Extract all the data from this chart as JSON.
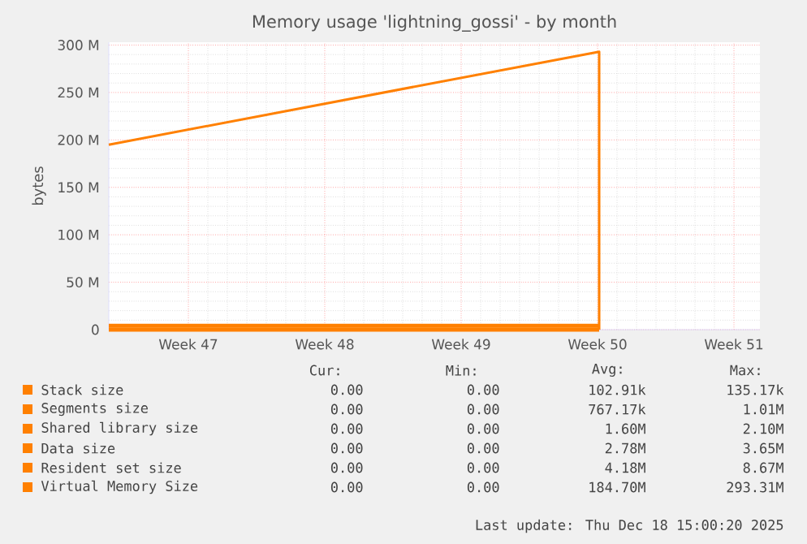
{
  "chart_data": {
    "type": "line",
    "title": "Memory usage 'lightning_gossi' - by month",
    "ylabel": "bytes",
    "xlim": [
      "2025-11-16T10:00",
      "2025-12-19T20:00"
    ],
    "ylim": [
      0,
      303
    ],
    "xticks": [
      {
        "value": "2025-11-20T12:00",
        "label": "Week 47"
      },
      {
        "value": "2025-11-27T12:00",
        "label": "Week 48"
      },
      {
        "value": "2025-12-04T12:00",
        "label": "Week 49"
      },
      {
        "value": "2025-12-11T12:00",
        "label": "Week 50"
      },
      {
        "value": "2025-12-18T12:00",
        "label": "Week 51"
      }
    ],
    "yticks": [
      0,
      {
        "value": 50,
        "label": "50 M"
      },
      {
        "value": 100,
        "label": "100 M"
      },
      {
        "value": 150,
        "label": "150 M"
      },
      {
        "value": 200,
        "label": "200 M"
      },
      {
        "value": 250,
        "label": "250 M"
      },
      {
        "value": 300,
        "label": "300 M"
      }
    ],
    "grid": true,
    "legend": "bottom",
    "marker": "none",
    "line_style": "solid",
    "series": [
      {
        "name": "Stack size",
        "color": "#ff8000",
        "x": [
          "2025-11-16T10:00",
          "2025-12-11T14:00"
        ],
        "values": [
          0,
          0
        ]
      },
      {
        "name": "Segments size",
        "color": "#ff8000",
        "values": [
          null,
          null
        ]
      },
      {
        "name": "Shared library size",
        "color": "#ff8000",
        "values": [
          null,
          null
        ]
      },
      {
        "name": "Data size",
        "color": "#ff8000",
        "values": [
          null,
          null
        ]
      },
      {
        "name": "Resident set size",
        "color": "#ff8000",
        "x": [
          "2025-11-16T10:00",
          "2025-12-11T14:00"
        ],
        "values": [
          4,
          4
        ]
      },
      {
        "name": "Virtual Memory Size",
        "color": "#ff8000",
        "x": [
          "2025-11-16T10:00",
          "2025-12-11T14:00",
          "2025-12-11T14:00"
        ],
        "values": [
          195,
          293,
          0
        ]
      }
    ],
    "annotations": [
      "Cur:",
      "Min:",
      "Avg:",
      "Max:",
      "0.00",
      "0.00",
      "102.91k",
      "135.17k",
      "0.00",
      "0.00",
      "767.17k",
      "1.01M",
      "0.00",
      "0.00",
      "1.60M",
      "2.10M",
      "0.00",
      "0.00",
      "2.78M",
      "3.65M",
      "0.00",
      "0.00",
      "4.18M",
      "8.67M",
      "0.00",
      "0.00",
      "184.70M",
      "293.31M",
      "Last update: Thu Dec 18 15:00:20 2025"
    ]
  }
}
